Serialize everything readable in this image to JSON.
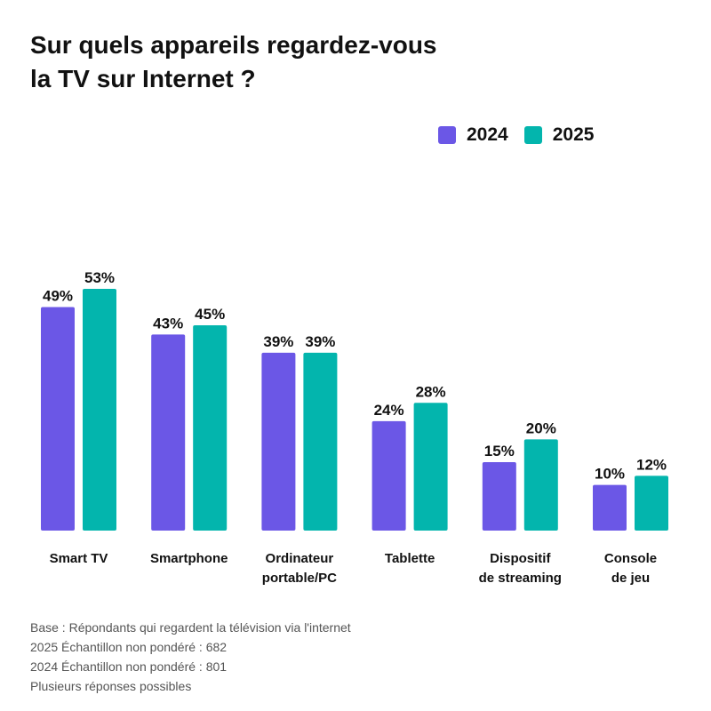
{
  "colors": {
    "series_2024": "#6b57e6",
    "series_2025": "#03b5ad",
    "text": "#111111",
    "note": "#555555"
  },
  "chart_data": {
    "type": "bar",
    "title": [
      "Sur quels appareils regardez-vous",
      "la TV sur Internet ?"
    ],
    "categories": [
      [
        "Smart TV"
      ],
      [
        "Smartphone"
      ],
      [
        "Ordinateur",
        "portable/PC"
      ],
      [
        "Tablette"
      ],
      [
        "Dispositif",
        "de streaming"
      ],
      [
        "Console",
        "de jeu"
      ]
    ],
    "series": [
      {
        "name": "2024",
        "values": [
          49,
          43,
          39,
          24,
          15,
          10
        ],
        "labels": [
          "49%",
          "43%",
          "39%",
          "24%",
          "15%",
          "10%"
        ]
      },
      {
        "name": "2025",
        "values": [
          53,
          45,
          39,
          28,
          20,
          12
        ],
        "labels": [
          "53%",
          "45%",
          "39%",
          "28%",
          "20%",
          "12%"
        ]
      }
    ],
    "ylim": [
      0,
      53
    ],
    "legend_position": "top-right",
    "grid": false
  },
  "footnotes": [
    "Base : Répondants qui regardent la télévision via l'internet",
    "2025 Échantillon non pondéré : 682",
    "2024 Échantillon non pondéré : 801",
    "Plusieurs réponses possibles"
  ]
}
